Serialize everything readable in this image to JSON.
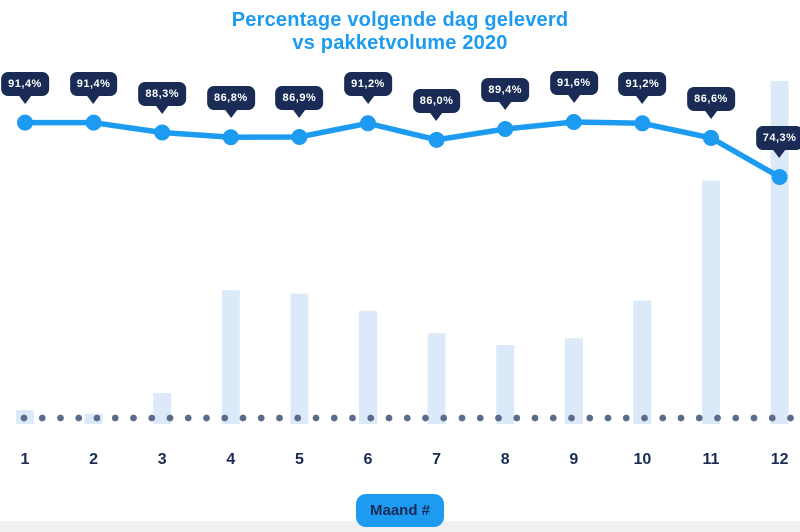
{
  "title": {
    "line1": "Percentage volgende dag geleverd",
    "line2": "vs pakketvolume 2020"
  },
  "x_axis": {
    "title": "Maand #",
    "tick_labels": [
      "1",
      "2",
      "3",
      "4",
      "5",
      "6",
      "7",
      "8",
      "9",
      "10",
      "11",
      "12"
    ]
  },
  "colors": {
    "background": "#ffffff",
    "accent_blue": "#1d9bf0",
    "navy": "#1a2c55",
    "bar_fill": "#dbe9f8",
    "baseline_dot": "#5b6b8c",
    "badge_text": "#ffffff",
    "footer_strip": "#f0f0f1"
  },
  "chart_data": {
    "type": "combo: line + bar",
    "title": "Percentage volgende dag geleverd vs pakketvolume 2020",
    "xlabel": "Maand #",
    "categories": [
      "1",
      "2",
      "3",
      "4",
      "5",
      "6",
      "7",
      "8",
      "9",
      "10",
      "11",
      "12"
    ],
    "grid": false,
    "legend": false,
    "baseline_style": "dotted row of slate dots along x-axis",
    "series": [
      {
        "name": "Percentage volgende dag geleverd",
        "type": "line",
        "unit": "%",
        "values": [
          91.4,
          91.4,
          88.3,
          86.8,
          86.9,
          91.2,
          86.0,
          89.4,
          91.6,
          91.2,
          86.6,
          74.3
        ],
        "point_labels": [
          "91,4%",
          "91,4%",
          "88,3%",
          "86,8%",
          "86,9%",
          "91,2%",
          "86,0%",
          "89,4%",
          "91,6%",
          "91,2%",
          "86,6%",
          "74,3%"
        ],
        "approx_range_shown": [
          74.3,
          91.6
        ]
      },
      {
        "name": "Pakketvolume 2020",
        "type": "bar",
        "unit": "relative volume index (no value axis shown; estimated from bar heights, busiest month = 100)",
        "values": [
          4,
          3,
          9,
          39,
          38,
          33,
          26.5,
          23,
          25,
          36,
          71,
          100
        ]
      }
    ]
  }
}
